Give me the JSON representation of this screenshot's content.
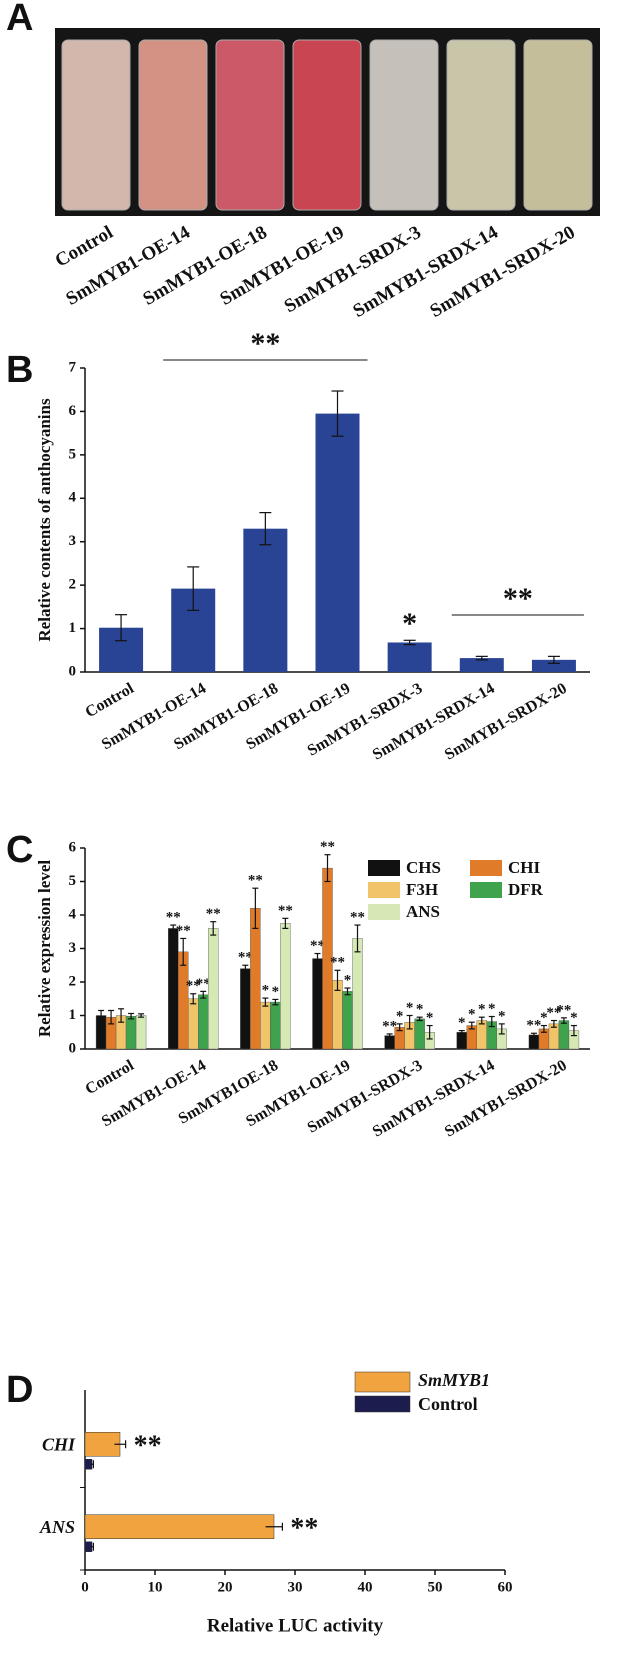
{
  "panel_a": {
    "panel": "A",
    "labels": [
      "Control",
      "SmMYB1-OE-14",
      "SmMYB1-OE-18",
      "SmMYB1-OE-19",
      "SmMYB1-SRDX-3",
      "SmMYB1-SRDX-14",
      "SmMYB1-SRDX-20"
    ]
  },
  "chart_data": [
    {
      "type": "bar",
      "panel": "B",
      "ylabel": "Relative contents of anthocyanins",
      "categories": [
        "Control",
        "SmMYB1-OE-14",
        "SmMYB1-OE-18",
        "SmMYB1-OE-19",
        "SmMYB1-SRDX-3",
        "SmMYB1-SRDX-14",
        "SmMYB1-SRDX-20"
      ],
      "values": [
        1.02,
        1.92,
        3.3,
        5.95,
        0.68,
        0.32,
        0.28
      ],
      "errors": [
        0.3,
        0.5,
        0.37,
        0.52,
        0.05,
        0.04,
        0.08
      ],
      "color": "#2a4495",
      "ylim": [
        0,
        7
      ],
      "yticks": [
        0,
        1,
        2,
        3,
        4,
        5,
        6,
        7
      ],
      "annotations": [
        "**",
        "*",
        "**"
      ]
    },
    {
      "type": "grouped_bar",
      "panel": "C",
      "ylabel": "Relative expression level",
      "categories": [
        "Control",
        "SmMYB1-OE-14",
        "SmMYB1OE-18",
        "SmMYB1-OE-19",
        "SmMYB1-SRDX-3",
        "SmMYB1-SRDX-14",
        "SmMYB1-SRDX-20"
      ],
      "series": [
        {
          "name": "CHS",
          "color": "#111111",
          "values": [
            1.0,
            3.6,
            2.4,
            2.7,
            0.4,
            0.5,
            0.42
          ],
          "errors": [
            0.15,
            0.1,
            0.1,
            0.15,
            0.05,
            0.05,
            0.05
          ],
          "labels": [
            null,
            "**",
            "**",
            "**",
            "**",
            "*",
            "**"
          ]
        },
        {
          "name": "CHI",
          "color": "#e07b2a",
          "values": [
            0.95,
            2.9,
            4.2,
            5.4,
            0.65,
            0.7,
            0.6
          ],
          "errors": [
            0.2,
            0.4,
            0.6,
            0.4,
            0.1,
            0.1,
            0.1
          ],
          "labels": [
            null,
            "**",
            "**",
            "**",
            "*",
            "*",
            "*"
          ]
        },
        {
          "name": "F3H",
          "color": "#f2c46a",
          "values": [
            1.0,
            1.5,
            1.4,
            2.05,
            0.8,
            0.85,
            0.75
          ],
          "errors": [
            0.2,
            0.15,
            0.12,
            0.3,
            0.2,
            0.1,
            0.1
          ],
          "labels": [
            null,
            "**",
            "*",
            "**",
            "*",
            "*",
            "**"
          ]
        },
        {
          "name": "DFR",
          "color": "#3fa34d",
          "values": [
            0.98,
            1.62,
            1.4,
            1.72,
            0.9,
            0.82,
            0.85
          ],
          "errors": [
            0.08,
            0.1,
            0.08,
            0.1,
            0.05,
            0.15,
            0.08
          ],
          "labels": [
            null,
            "**",
            "*",
            "*",
            "*",
            "*",
            "**"
          ]
        },
        {
          "name": "ANS",
          "color": "#d6e8b4",
          "values": [
            1.0,
            3.6,
            3.75,
            3.3,
            0.5,
            0.6,
            0.55
          ],
          "errors": [
            0.05,
            0.2,
            0.15,
            0.4,
            0.2,
            0.15,
            0.15
          ],
          "labels": [
            null,
            "**",
            "**",
            "**",
            "*",
            "*",
            "*"
          ]
        }
      ],
      "ylim": [
        0,
        6
      ],
      "yticks": [
        0,
        1,
        2,
        3,
        4,
        5,
        6
      ],
      "legend": "top-right"
    },
    {
      "type": "hbar",
      "panel": "D",
      "xlabel": "Relative LUC activity",
      "categories": [
        "CHI",
        "ANS"
      ],
      "series": [
        {
          "name": "SmMYB1",
          "color": "#f0a33e",
          "values": [
            5,
            27
          ],
          "errors": [
            0.8,
            1.2
          ],
          "labels": [
            "**",
            "**"
          ]
        },
        {
          "name": "Control",
          "color": "#1c1c4e",
          "values": [
            1,
            1
          ],
          "errors": [
            0.2,
            0.2
          ]
        }
      ],
      "xlim": [
        0,
        60
      ],
      "xticks": [
        0,
        10,
        20,
        30,
        40,
        50,
        60
      ],
      "legend": "top-right"
    }
  ]
}
